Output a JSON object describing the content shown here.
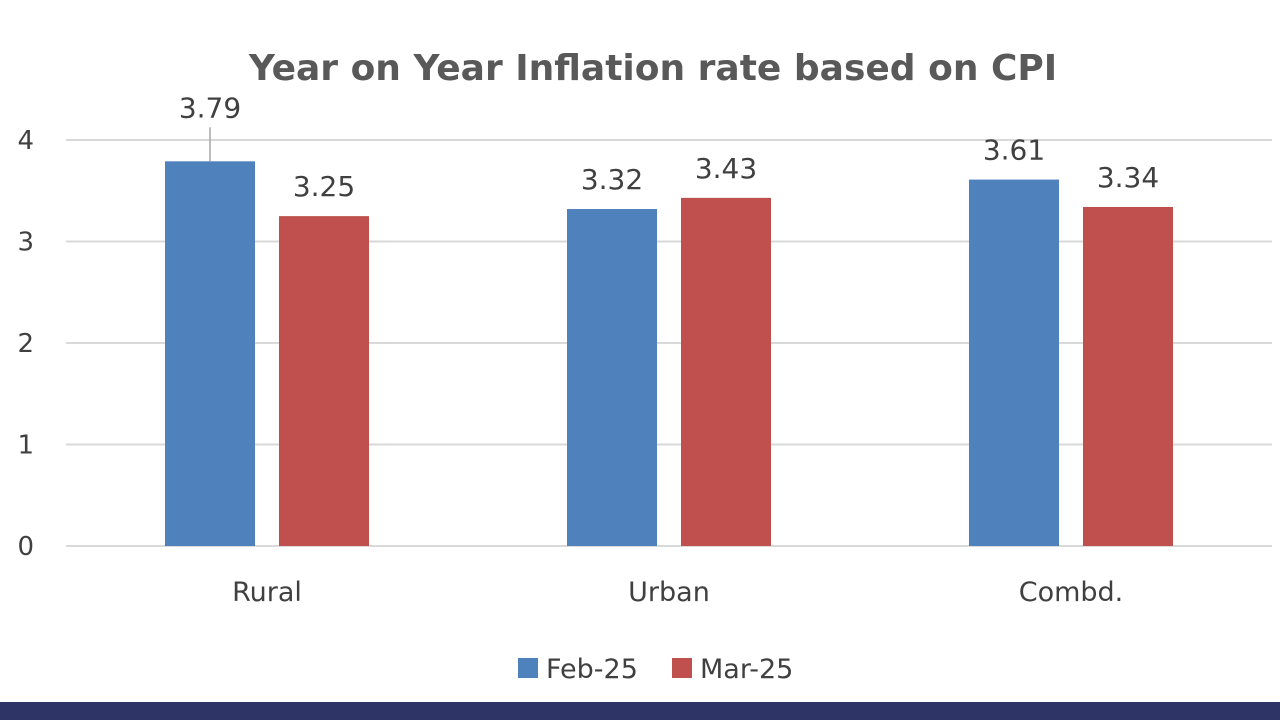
{
  "chart_data": {
    "type": "bar",
    "title": "Year on Year Inflation rate based on CPI",
    "categories": [
      "Rural",
      "Urban",
      "Combd."
    ],
    "series": [
      {
        "name": "Feb-25",
        "values": [
          3.79,
          3.32,
          3.61
        ],
        "color": "#4f81bd"
      },
      {
        "name": "Mar-25",
        "values": [
          3.25,
          3.43,
          3.34
        ],
        "color": "#c0504d"
      }
    ],
    "y_ticks": [
      "0",
      "1",
      "2",
      "3",
      "4"
    ],
    "ylim": [
      0,
      4
    ],
    "xlabel": "",
    "ylabel": "",
    "grid": true,
    "legend_position": "bottom-center"
  },
  "theme": {
    "bottom_band_color": "#2e3566"
  }
}
